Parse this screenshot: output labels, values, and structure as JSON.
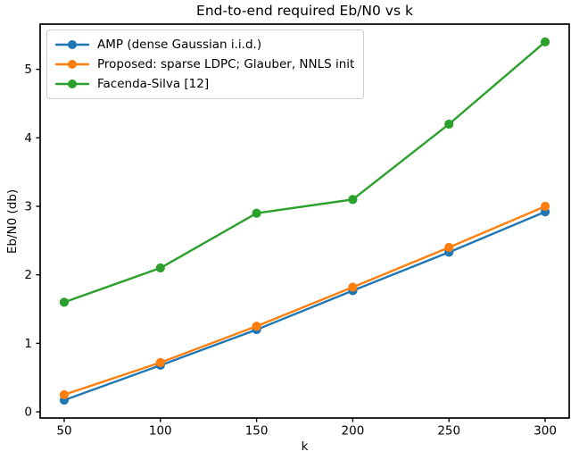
{
  "chart_data": {
    "type": "line",
    "title": "End-to-end required Eb/N0 vs k",
    "xlabel": "k",
    "ylabel": "Eb/N0 (db)",
    "x": [
      50,
      100,
      150,
      200,
      250,
      300
    ],
    "series": [
      {
        "name": "AMP (dense Gaussian i.i.d.)",
        "color": "#1f77b4",
        "values": [
          0.17,
          0.68,
          1.2,
          1.77,
          2.33,
          2.92
        ]
      },
      {
        "name": "Proposed: sparse LDPC; Glauber, NNLS init",
        "color": "#ff7f0e",
        "values": [
          0.25,
          0.72,
          1.25,
          1.82,
          2.4,
          3.0
        ]
      },
      {
        "name": "Facenda-Silva [12]",
        "color": "#2ca02c",
        "values": [
          1.6,
          2.1,
          2.9,
          3.1,
          4.2,
          5.4
        ]
      }
    ],
    "x_ticks": [
      50,
      100,
      150,
      200,
      250,
      300
    ],
    "y_ticks": [
      0,
      1,
      2,
      3,
      4,
      5
    ],
    "xlim": [
      37.5,
      312.5
    ],
    "ylim": [
      -0.09,
      5.66
    ],
    "grid": false,
    "legend_position": "upper left",
    "marker": "o",
    "axis_color": "#000000"
  }
}
